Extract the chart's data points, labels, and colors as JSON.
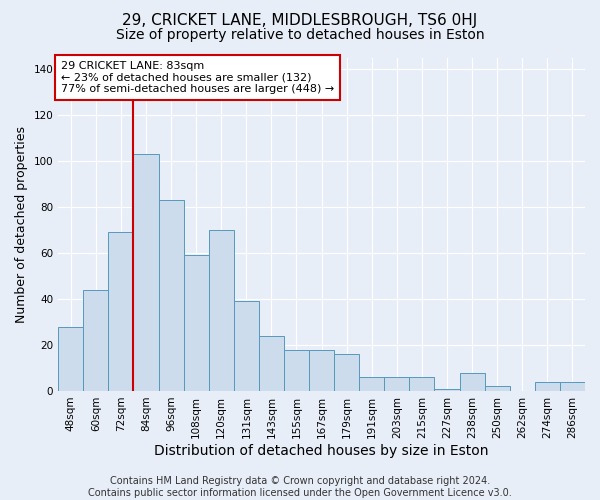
{
  "title": "29, CRICKET LANE, MIDDLESBROUGH, TS6 0HJ",
  "subtitle": "Size of property relative to detached houses in Eston",
  "xlabel": "Distribution of detached houses by size in Eston",
  "ylabel": "Number of detached properties",
  "footer_line1": "Contains HM Land Registry data © Crown copyright and database right 2024.",
  "footer_line2": "Contains public sector information licensed under the Open Government Licence v3.0.",
  "categories": [
    "48sqm",
    "60sqm",
    "72sqm",
    "84sqm",
    "96sqm",
    "108sqm",
    "120sqm",
    "131sqm",
    "143sqm",
    "155sqm",
    "167sqm",
    "179sqm",
    "191sqm",
    "203sqm",
    "215sqm",
    "227sqm",
    "238sqm",
    "250sqm",
    "262sqm",
    "274sqm",
    "286sqm"
  ],
  "values": [
    28,
    44,
    69,
    103,
    83,
    59,
    70,
    39,
    24,
    18,
    18,
    16,
    6,
    6,
    6,
    1,
    8,
    2,
    0,
    4,
    4
  ],
  "bar_color": "#ccdcec",
  "bar_edge_color": "#5599bb",
  "vline_color": "#cc0000",
  "annotation_line1": "29 CRICKET LANE: 83sqm",
  "annotation_line2": "← 23% of detached houses are smaller (132)",
  "annotation_line3": "77% of semi-detached houses are larger (448) →",
  "annotation_box_facecolor": "#ffffff",
  "annotation_box_edgecolor": "#cc0000",
  "ylim": [
    0,
    145
  ],
  "yticks": [
    0,
    20,
    40,
    60,
    80,
    100,
    120,
    140
  ],
  "background_color": "#e8eef8",
  "grid_color": "#ffffff",
  "title_fontsize": 11,
  "subtitle_fontsize": 10,
  "ylabel_fontsize": 9,
  "xlabel_fontsize": 10,
  "tick_fontsize": 7.5,
  "annotation_fontsize": 8,
  "footer_fontsize": 7
}
